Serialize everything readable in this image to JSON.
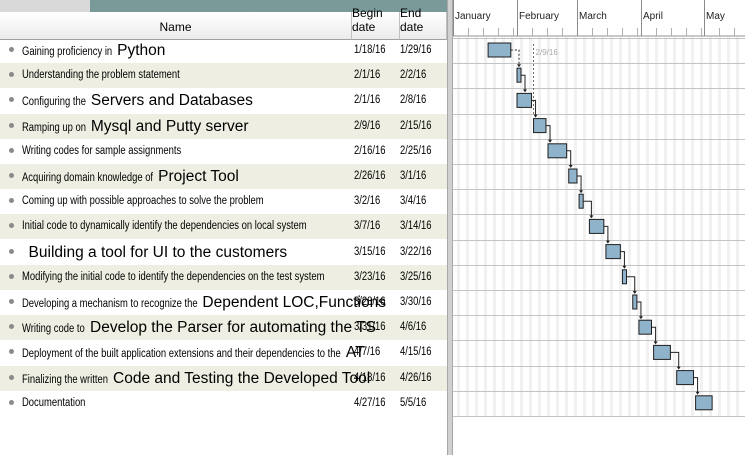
{
  "table": {
    "headers": {
      "name": "Name",
      "begin": "Begin date",
      "end": "End date"
    },
    "tasks": [
      {
        "name": "Gaining proficiency in",
        "overlay": "Python",
        "begin": "1/18/16",
        "end": "1/29/16"
      },
      {
        "name": "Understanding the problem statement",
        "overlay": "",
        "begin": "2/1/16",
        "end": "2/2/16"
      },
      {
        "name": "Configuring the",
        "overlay": "Servers and Databases",
        "begin": "2/1/16",
        "end": "2/8/16"
      },
      {
        "name": "Ramping up on",
        "overlay": "Mysql and Putty server",
        "begin": "2/9/16",
        "end": "2/15/16"
      },
      {
        "name": "Writing codes for sample assignments",
        "overlay": "",
        "begin": "2/16/16",
        "end": "2/25/16"
      },
      {
        "name": "Acquiring domain knowledge of",
        "overlay": "Project Tool",
        "begin": "2/26/16",
        "end": "3/1/16"
      },
      {
        "name": "Coming up with possible approaches to solve the problem",
        "overlay": "",
        "begin": "3/2/16",
        "end": "3/4/16"
      },
      {
        "name": "Initial code to dynamically identify the dependencies on local system",
        "overlay": "",
        "begin": "3/7/16",
        "end": "3/14/16"
      },
      {
        "name": "",
        "overlay": "Building a tool for UI to the customers",
        "begin": "3/15/16",
        "end": "3/22/16"
      },
      {
        "name": "Modifying the initial code to identify the dependencies on the test system",
        "overlay": "",
        "begin": "3/23/16",
        "end": "3/25/16"
      },
      {
        "name": "Developing a mechanism to recognize the",
        "overlay": "Dependent LOC,Functions",
        "begin": "3/28/16",
        "end": "3/30/16"
      },
      {
        "name": "Writing code to",
        "overlay": "Develop the Parser for automating the TS",
        "begin": "3/31/16",
        "end": "4/6/16"
      },
      {
        "name": "Deployment of the built application extensions and their dependencies to the",
        "overlay": "AT",
        "begin": "4/7/16",
        "end": "4/15/16"
      },
      {
        "name": "Finalizing the written",
        "overlay": "Code and Testing the Developed Tool",
        "begin": "4/18/16",
        "end": "4/26/16"
      },
      {
        "name": "Documentation",
        "overlay": "",
        "begin": "4/27/16",
        "end": "5/5/16"
      }
    ]
  },
  "gantt": {
    "months": [
      "January",
      "February",
      "March",
      "April",
      "May"
    ],
    "today_label": "2/9/16",
    "bar_color": "#8fb3cb"
  }
}
